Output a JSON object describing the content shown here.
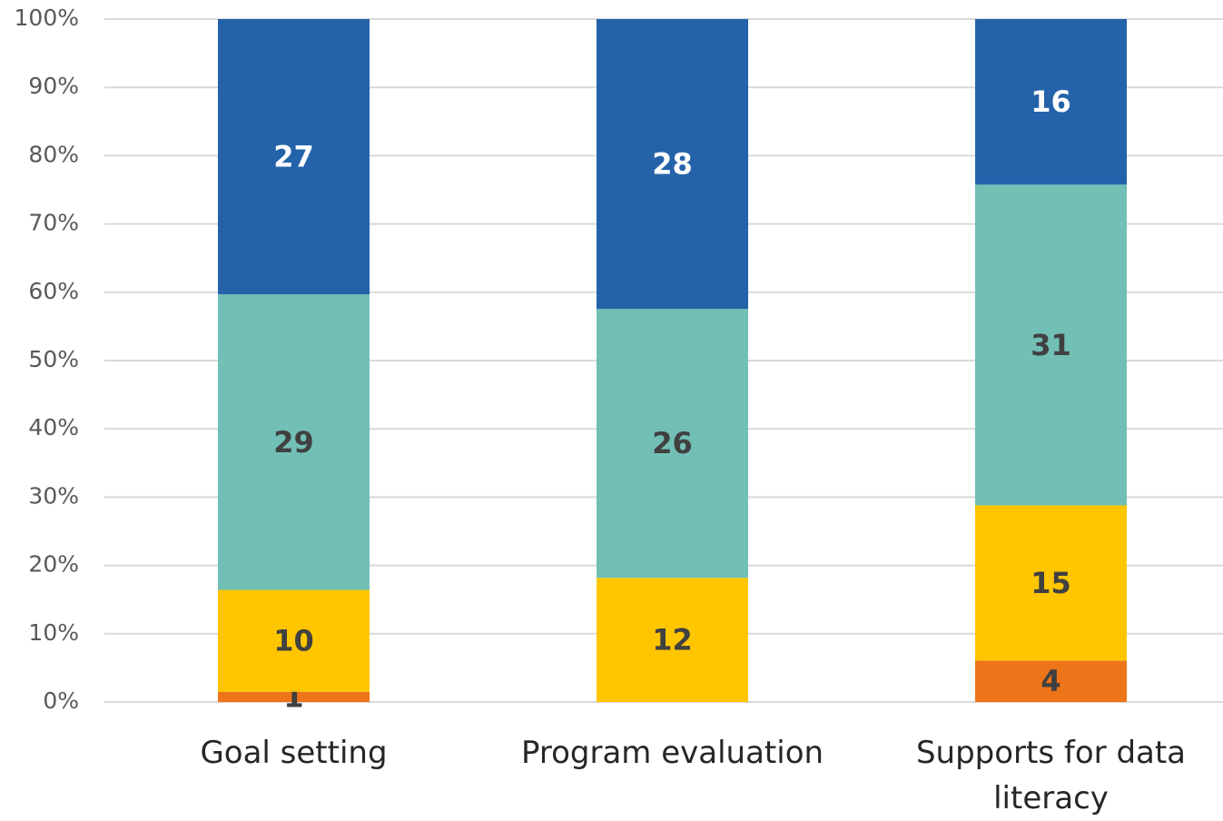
{
  "chart_data": {
    "type": "bar",
    "stacking": "percent",
    "categories": [
      "Goal setting",
      "Program evaluation",
      "Supports for data literacy"
    ],
    "series": [
      {
        "color": "#ed7419",
        "label_color": "#404040",
        "values": [
          1,
          null,
          4
        ]
      },
      {
        "color": "#ffc600",
        "label_color": "#404040",
        "values": [
          10,
          12,
          15
        ]
      },
      {
        "color": "#72bfb6",
        "label_color": "#404040",
        "values": [
          29,
          26,
          31
        ]
      },
      {
        "color": "#2463aa",
        "label_color": "#ffffff",
        "values": [
          27,
          28,
          16
        ]
      }
    ],
    "ylim": [
      0,
      100
    ],
    "yticks": [
      {
        "value": 0,
        "label": "0%"
      },
      {
        "value": 10,
        "label": "10%"
      },
      {
        "value": 20,
        "label": "20%"
      },
      {
        "value": 30,
        "label": "30%"
      },
      {
        "value": 40,
        "label": "40%"
      },
      {
        "value": 50,
        "label": "50%"
      },
      {
        "value": 60,
        "label": "60%"
      },
      {
        "value": 70,
        "label": "70%"
      },
      {
        "value": 80,
        "label": "80%"
      },
      {
        "value": 90,
        "label": "90%"
      },
      {
        "value": 100,
        "label": "100%"
      }
    ],
    "grid": true
  }
}
